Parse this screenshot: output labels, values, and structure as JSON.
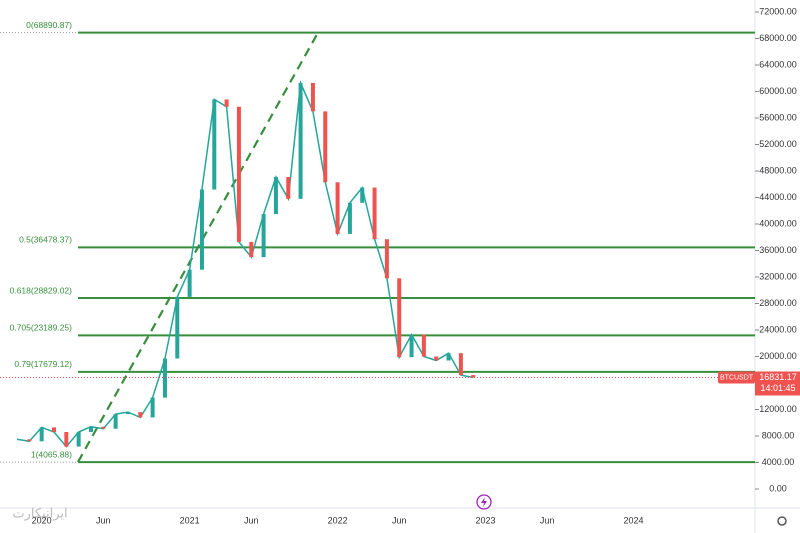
{
  "chart_data": {
    "type": "line",
    "symbol": "BTCUSDT",
    "countdown": "14:01:45",
    "last_price": 16831.17,
    "watermark": "ایرانیکارت",
    "categories": [
      null,
      null,
      "2020",
      null,
      null,
      null,
      null,
      "Jun",
      null,
      null,
      null,
      null,
      null,
      null,
      "2021",
      null,
      null,
      null,
      null,
      "Jun",
      null,
      null,
      null,
      null,
      null,
      null,
      "2022",
      null,
      null,
      null,
      null,
      "Jun",
      null,
      null,
      null,
      null,
      null,
      null,
      "2023",
      null,
      null,
      null,
      null,
      "Jun",
      null,
      null,
      null,
      null,
      null,
      null,
      "2024",
      null,
      null,
      null,
      null,
      null,
      null,
      null,
      null,
      null
    ],
    "series": [
      {
        "name": "BTCUSDT",
        "color": "#26a69a",
        "values": [
          7500,
          7200,
          9300,
          8600,
          6400,
          8600,
          9400,
          9100,
          11300,
          11600,
          10800,
          13800,
          19700,
          29000,
          33100,
          45200,
          58800,
          57700,
          37300,
          35000,
          41500,
          47100,
          43800,
          61300,
          57000,
          46300,
          38500,
          43200,
          45500,
          37700,
          31800,
          19900,
          23300,
          20000,
          19400,
          20500,
          17200,
          16831.17,
          null,
          null,
          null,
          null,
          null,
          null,
          null,
          null,
          null,
          null,
          null,
          null,
          null,
          null,
          null,
          null,
          null,
          null,
          null,
          null,
          null,
          null
        ]
      }
    ],
    "fib_levels": [
      {
        "value": 68890.87,
        "label": "0(68890.87)"
      },
      {
        "value": 36478.37,
        "label": "0.5(36478.37)"
      },
      {
        "value": 28829.02,
        "label": "0.618(28829.02)"
      },
      {
        "value": 23189.25,
        "label": "0.705(23189.25)"
      },
      {
        "value": 17679.12,
        "label": "0.79(17679.12)"
      },
      {
        "value": 4065.88,
        "label": "1(4065.88)"
      }
    ],
    "fib_color": "#388e3c",
    "ylim": [
      0,
      72000
    ],
    "yticks": [
      {
        "value": 0,
        "label": "0.00"
      },
      {
        "value": 4000,
        "label": "4000.00"
      },
      {
        "value": 8000,
        "label": "8000.00"
      },
      {
        "value": 12000,
        "label": "12000.00"
      },
      {
        "value": 16000,
        "label": "16000.00"
      },
      {
        "value": 20000,
        "label": "20000.00"
      },
      {
        "value": 24000,
        "label": "24000.00"
      },
      {
        "value": 28000,
        "label": "28000.00"
      },
      {
        "value": 32000,
        "label": "32000.00"
      },
      {
        "value": 36000,
        "label": "36000.00"
      },
      {
        "value": 40000,
        "label": "40000.00"
      },
      {
        "value": 44000,
        "label": "44000.00"
      },
      {
        "value": 48000,
        "label": "48000.00"
      },
      {
        "value": 52000,
        "label": "52000.00"
      },
      {
        "value": 56000,
        "label": "56000.00"
      },
      {
        "value": 60000,
        "label": "60000.00"
      },
      {
        "value": 64000,
        "label": "64000.00"
      },
      {
        "value": 68000,
        "label": "68000.00"
      },
      {
        "value": 72000,
        "label": "72000.00"
      }
    ]
  }
}
